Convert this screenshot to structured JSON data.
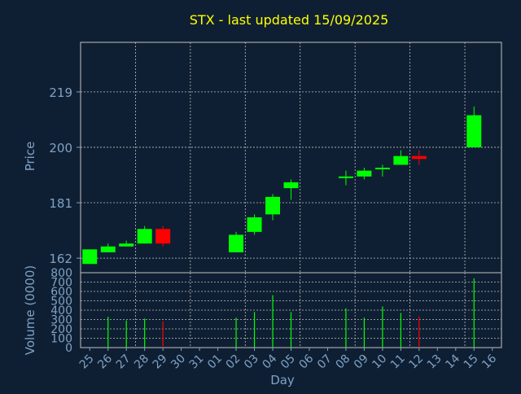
{
  "chart_data": {
    "type": "candlestick",
    "title": "STX - last updated 15/09/2025",
    "price_axis": {
      "label": "Price",
      "ticks": [
        162,
        181,
        200,
        219
      ],
      "range": [
        157,
        236
      ]
    },
    "volume_axis": {
      "label": "Volume (0000)",
      "ticks": [
        0,
        100,
        200,
        300,
        400,
        500,
        600,
        700,
        800
      ],
      "range": [
        0,
        800
      ]
    },
    "x_axis": {
      "label": "Day",
      "tick_labels": [
        "25",
        "26",
        "27",
        "28",
        "29",
        "30",
        "31",
        "01",
        "02",
        "03",
        "04",
        "05",
        "06",
        "07",
        "08",
        "09",
        "10",
        "11",
        "12",
        "13",
        "14",
        "15",
        "16"
      ]
    },
    "grid": true,
    "colors": {
      "background": "#0f1f33",
      "title": "#ffff00",
      "axis_text": "#7fa2c4",
      "up": "#00ff00",
      "down": "#ff0000",
      "grid": "#c0c0c0"
    },
    "candles": [
      {
        "day": "25",
        "open": 160,
        "close": 165,
        "high": 165,
        "low": 160,
        "volume": 0
      },
      {
        "day": "26",
        "open": 164,
        "close": 166,
        "high": 167,
        "low": 164,
        "volume": 330
      },
      {
        "day": "27",
        "open": 166,
        "close": 167,
        "high": 168,
        "low": 166,
        "volume": 290
      },
      {
        "day": "28",
        "open": 167,
        "close": 172,
        "high": 173,
        "low": 167,
        "volume": 310
      },
      {
        "day": "29",
        "open": 172,
        "close": 167,
        "high": 173,
        "low": 166,
        "volume": 280
      },
      {
        "day": "02",
        "open": 164,
        "close": 170,
        "high": 171,
        "low": 164,
        "volume": 320
      },
      {
        "day": "03",
        "open": 171,
        "close": 176,
        "high": 177,
        "low": 170,
        "volume": 380
      },
      {
        "day": "04",
        "open": 177,
        "close": 183,
        "high": 184,
        "low": 175,
        "volume": 560
      },
      {
        "day": "05",
        "open": 186,
        "close": 188,
        "high": 189,
        "low": 182,
        "volume": 380
      },
      {
        "day": "08",
        "open": 190,
        "close": 190,
        "high": 192,
        "low": 187,
        "volume": 420
      },
      {
        "day": "09",
        "open": 190,
        "close": 192,
        "high": 193,
        "low": 189,
        "volume": 320
      },
      {
        "day": "10",
        "open": 193,
        "close": 193,
        "high": 194,
        "low": 190,
        "volume": 440
      },
      {
        "day": "11",
        "open": 194,
        "close": 197,
        "high": 199,
        "low": 194,
        "volume": 370
      },
      {
        "day": "12",
        "open": 197,
        "close": 196,
        "high": 199,
        "low": 194,
        "volume": 330
      },
      {
        "day": "15",
        "open": 200,
        "close": 211,
        "high": 214,
        "low": 200,
        "volume": 740
      }
    ]
  }
}
